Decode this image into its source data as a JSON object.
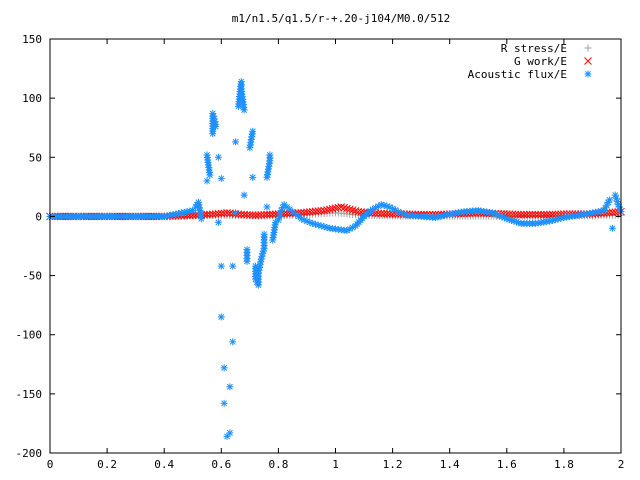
{
  "chart_data": {
    "type": "scatter",
    "title": "m1/n1.5/q1.5/r-+.20-j104/M0.0/512",
    "xlabel": "",
    "ylabel": "",
    "xlim": [
      0,
      2
    ],
    "ylim": [
      -200,
      150
    ],
    "x_ticks": [
      "0",
      "0.2",
      "0.4",
      "0.6",
      "0.8",
      "1",
      "1.2",
      "1.4",
      "1.6",
      "1.8",
      "2"
    ],
    "y_ticks": [
      "150",
      "100",
      "50",
      "0",
      "-50",
      "-100",
      "-150",
      "-200"
    ],
    "grid": false,
    "legend_position": "top-right",
    "series": [
      {
        "name": "R stress/E",
        "color": "#a0a0a0",
        "marker": "plus",
        "points": [
          [
            0.0,
            0
          ],
          [
            0.1,
            0
          ],
          [
            0.2,
            0
          ],
          [
            0.3,
            0
          ],
          [
            0.4,
            0
          ],
          [
            0.45,
            0.3
          ],
          [
            0.5,
            0.5
          ],
          [
            0.55,
            0.8
          ],
          [
            0.6,
            1
          ],
          [
            0.65,
            0.8
          ],
          [
            0.7,
            0.5
          ],
          [
            0.75,
            0.3
          ],
          [
            0.8,
            0.5
          ],
          [
            0.85,
            1
          ],
          [
            0.9,
            1.5
          ],
          [
            0.93,
            2
          ],
          [
            0.96,
            2.5
          ],
          [
            1.0,
            3
          ],
          [
            1.03,
            2.5
          ],
          [
            1.06,
            1.5
          ],
          [
            1.1,
            1
          ],
          [
            1.2,
            0.5
          ],
          [
            1.3,
            0.3
          ],
          [
            1.4,
            0.3
          ],
          [
            1.5,
            0.3
          ],
          [
            1.6,
            0.2
          ],
          [
            1.7,
            0.2
          ],
          [
            1.8,
            0.3
          ],
          [
            1.9,
            0.5
          ],
          [
            1.95,
            1
          ],
          [
            2.0,
            1
          ]
        ]
      },
      {
        "name": "G work/E",
        "color": "#ff0000",
        "marker": "cross",
        "points": [
          [
            0.0,
            0
          ],
          [
            0.1,
            0
          ],
          [
            0.2,
            0
          ],
          [
            0.3,
            0
          ],
          [
            0.4,
            0
          ],
          [
            0.45,
            0.5
          ],
          [
            0.5,
            1
          ],
          [
            0.55,
            1.5
          ],
          [
            0.58,
            2
          ],
          [
            0.62,
            3
          ],
          [
            0.65,
            2
          ],
          [
            0.68,
            1.5
          ],
          [
            0.72,
            1
          ],
          [
            0.76,
            1.5
          ],
          [
            0.8,
            2
          ],
          [
            0.84,
            2.5
          ],
          [
            0.88,
            3
          ],
          [
            0.92,
            4
          ],
          [
            0.96,
            5
          ],
          [
            1.0,
            7
          ],
          [
            1.02,
            8
          ],
          [
            1.05,
            6
          ],
          [
            1.08,
            4
          ],
          [
            1.12,
            3
          ],
          [
            1.16,
            2.5
          ],
          [
            1.2,
            2
          ],
          [
            1.25,
            2
          ],
          [
            1.3,
            1.5
          ],
          [
            1.35,
            1.5
          ],
          [
            1.4,
            2
          ],
          [
            1.45,
            2.5
          ],
          [
            1.5,
            3
          ],
          [
            1.55,
            2.5
          ],
          [
            1.6,
            2
          ],
          [
            1.65,
            1.5
          ],
          [
            1.7,
            1.5
          ],
          [
            1.75,
            1.5
          ],
          [
            1.8,
            2
          ],
          [
            1.85,
            2
          ],
          [
            1.9,
            2
          ],
          [
            1.95,
            3
          ],
          [
            2.0,
            4
          ]
        ]
      },
      {
        "name": "Acoustic flux/E",
        "color": "#1e90ff",
        "marker": "star",
        "points": [
          [
            0.0,
            0
          ],
          [
            0.05,
            0
          ],
          [
            0.1,
            0
          ],
          [
            0.15,
            0
          ],
          [
            0.2,
            0
          ],
          [
            0.25,
            0
          ],
          [
            0.3,
            0
          ],
          [
            0.35,
            0
          ],
          [
            0.4,
            0
          ],
          [
            0.42,
            1
          ],
          [
            0.44,
            2
          ],
          [
            0.46,
            3
          ],
          [
            0.48,
            4
          ],
          [
            0.5,
            5
          ],
          [
            0.51,
            8
          ],
          [
            0.52,
            12
          ],
          [
            0.53,
            -2
          ],
          [
            0.55,
            30
          ],
          [
            0.55,
            52
          ],
          [
            0.56,
            35
          ],
          [
            0.57,
            70
          ],
          [
            0.57,
            87
          ],
          [
            0.58,
            78
          ],
          [
            0.58,
            76
          ],
          [
            0.59,
            50
          ],
          [
            0.59,
            -5
          ],
          [
            0.6,
            32
          ],
          [
            0.6,
            -42
          ],
          [
            0.6,
            -85
          ],
          [
            0.61,
            -128
          ],
          [
            0.61,
            -158
          ],
          [
            0.62,
            -186
          ],
          [
            0.63,
            -183
          ],
          [
            0.63,
            -144
          ],
          [
            0.64,
            -106
          ],
          [
            0.64,
            -42
          ],
          [
            0.65,
            3
          ],
          [
            0.65,
            63
          ],
          [
            0.66,
            93
          ],
          [
            0.67,
            114
          ],
          [
            0.67,
            108
          ],
          [
            0.68,
            90
          ],
          [
            0.68,
            18
          ],
          [
            0.69,
            -28
          ],
          [
            0.69,
            -38
          ],
          [
            0.7,
            58
          ],
          [
            0.71,
            72
          ],
          [
            0.71,
            33
          ],
          [
            0.72,
            -42
          ],
          [
            0.72,
            -53
          ],
          [
            0.73,
            -58
          ],
          [
            0.73,
            -48
          ],
          [
            0.74,
            -36
          ],
          [
            0.75,
            -27
          ],
          [
            0.75,
            -15
          ],
          [
            0.76,
            8
          ],
          [
            0.76,
            33
          ],
          [
            0.77,
            47
          ],
          [
            0.77,
            52
          ],
          [
            0.78,
            -20
          ],
          [
            0.79,
            -5
          ],
          [
            0.8,
            -3
          ],
          [
            0.81,
            5
          ],
          [
            0.82,
            10
          ],
          [
            0.84,
            6
          ],
          [
            0.86,
            2
          ],
          [
            0.88,
            -2
          ],
          [
            0.9,
            -4
          ],
          [
            0.92,
            -6
          ],
          [
            0.95,
            -8
          ],
          [
            0.98,
            -10
          ],
          [
            1.01,
            -11
          ],
          [
            1.04,
            -12
          ],
          [
            1.07,
            -8
          ],
          [
            1.1,
            0
          ],
          [
            1.13,
            6
          ],
          [
            1.16,
            10
          ],
          [
            1.19,
            8
          ],
          [
            1.22,
            4
          ],
          [
            1.25,
            1
          ],
          [
            1.3,
            0
          ],
          [
            1.35,
            -1
          ],
          [
            1.4,
            2
          ],
          [
            1.45,
            4
          ],
          [
            1.5,
            5
          ],
          [
            1.55,
            3
          ],
          [
            1.6,
            -2
          ],
          [
            1.65,
            -6
          ],
          [
            1.7,
            -6
          ],
          [
            1.75,
            -4
          ],
          [
            1.8,
            -1
          ],
          [
            1.85,
            1
          ],
          [
            1.9,
            3
          ],
          [
            1.94,
            5
          ],
          [
            1.96,
            14
          ],
          [
            1.97,
            -10
          ],
          [
            1.98,
            18
          ],
          [
            1.99,
            10
          ],
          [
            2.0,
            4
          ]
        ]
      }
    ]
  }
}
